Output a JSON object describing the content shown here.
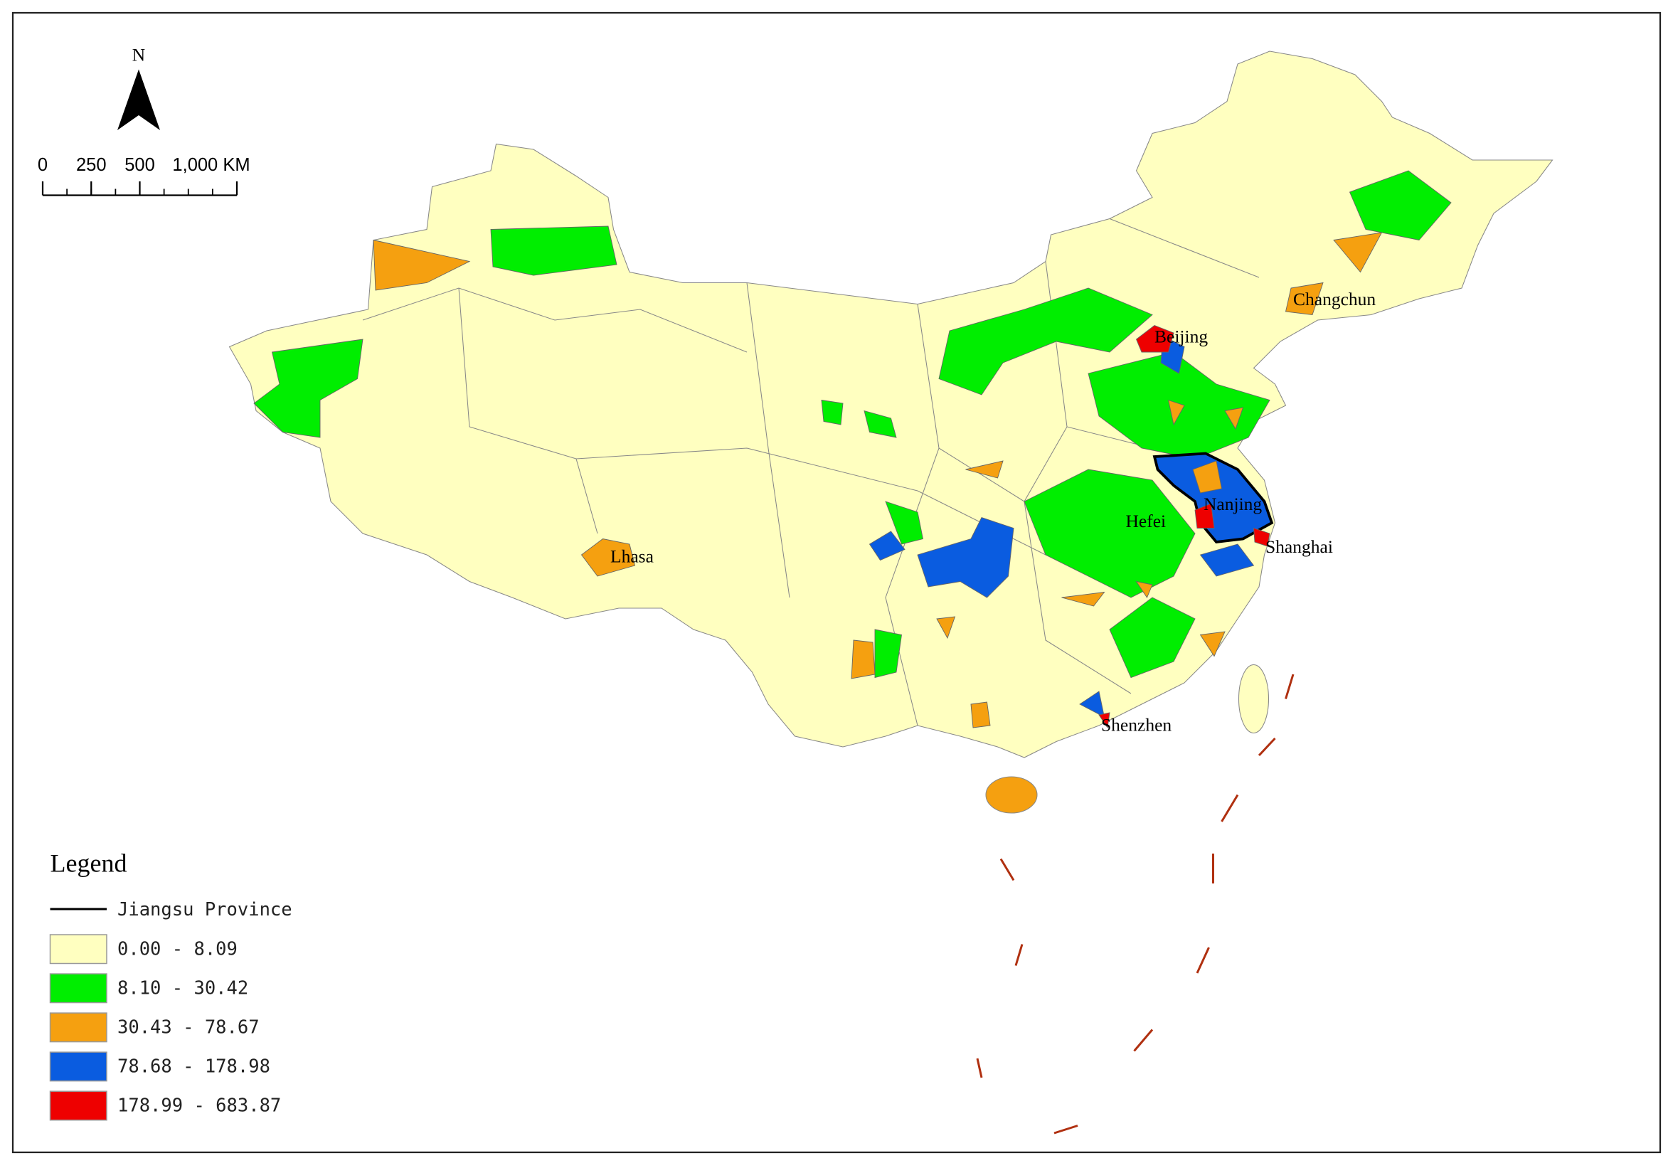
{
  "map": {
    "north_label": "N",
    "scale_bar": {
      "ticks": [
        {
          "value": 0,
          "label": "0"
        },
        {
          "value": 250,
          "label": "250"
        },
        {
          "value": 500,
          "label": "500"
        },
        {
          "value": 1000,
          "label": "1,000 KM"
        }
      ]
    },
    "cities": [
      "Beijing",
      "Changchun",
      "Lhasa",
      "Nanjing",
      "Hefei",
      "Shanghai",
      "Shenzhen"
    ],
    "legend": {
      "title": "Legend",
      "boundary": "Jiangsu Province",
      "classes": [
        {
          "label": "0.00 - 8.09",
          "color": "#ffffc0"
        },
        {
          "label": "8.10 - 30.42",
          "color": "#00ee00"
        },
        {
          "label": "30.43 - 78.67",
          "color": "#f5a010"
        },
        {
          "label": "78.68 - 178.98",
          "color": "#0a5ce0"
        },
        {
          "label": "178.99 - 683.87",
          "color": "#ee0000"
        }
      ]
    }
  }
}
